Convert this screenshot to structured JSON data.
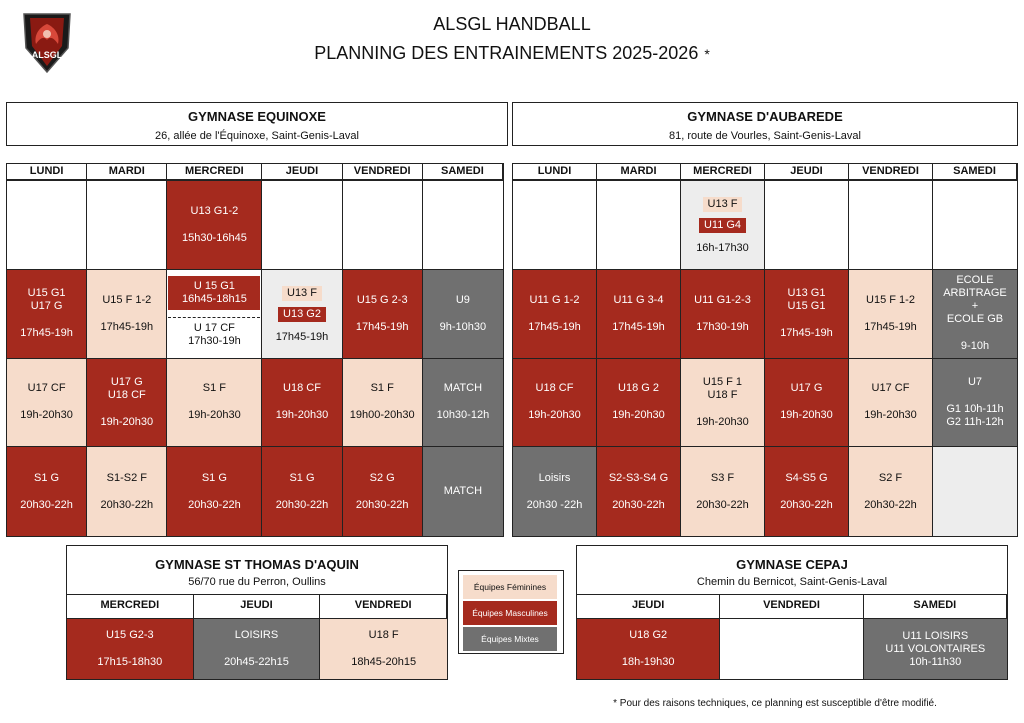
{
  "header": {
    "logo_text": "ALSGL",
    "title": "ALSGL HANDBALL",
    "subtitle": "PLANNING DES ENTRAINEMENTS 2025-2026",
    "asterisk": "*"
  },
  "colors": {
    "feminine": "#f6dccb",
    "masculine": "#a52a1e",
    "mixte": "#707070"
  },
  "equinoxe": {
    "name": "GYMNASE EQUINOXE",
    "address": "26, allée de l'Équinoxe, Saint-Genis-Laval",
    "days": [
      "LUNDI",
      "MARDI",
      "MERCREDI",
      "JEUDI",
      "VENDREDI",
      "SAMEDI"
    ],
    "rows": [
      [
        {
          "type": "w",
          "label": "",
          "time": ""
        },
        {
          "type": "w",
          "label": "",
          "time": ""
        },
        {
          "type": "m",
          "label": "U13 G1-2",
          "time": "15h30-16h45"
        },
        {
          "type": "w",
          "label": "",
          "time": ""
        },
        {
          "type": "w",
          "label": "",
          "time": ""
        },
        {
          "type": "w",
          "label": "",
          "time": ""
        }
      ],
      [
        {
          "type": "m",
          "label": "U15 G1\nU17 G",
          "time": "17h45-19h"
        },
        {
          "type": "f",
          "label": "U15 F 1-2",
          "time": "17h45-19h"
        },
        {
          "type": "split",
          "top_label": "U 15 G1",
          "top_time": "16h45-18h15",
          "bottom_label": "U 17 CF",
          "bottom_time": "17h30-19h"
        },
        {
          "type": "tags",
          "tags": [
            {
              "t": "f",
              "label": "U13 F"
            },
            {
              "t": "m",
              "label": "U13 G2"
            }
          ],
          "time": "17h45-19h"
        },
        {
          "type": "m",
          "label": "U15 G 2-3",
          "time": "17h45-19h"
        },
        {
          "type": "x",
          "label": "U9",
          "time": "9h-10h30"
        }
      ],
      [
        {
          "type": "f",
          "label": "U17 CF",
          "time": "19h-20h30"
        },
        {
          "type": "m",
          "label": "U17 G\nU18 CF",
          "time": "19h-20h30"
        },
        {
          "type": "f",
          "label": "S1 F",
          "time": "19h-20h30"
        },
        {
          "type": "m",
          "label": "U18 CF",
          "time": "19h-20h30"
        },
        {
          "type": "f",
          "label": "S1 F",
          "time": "19h00-20h30"
        },
        {
          "type": "x",
          "label": "MATCH",
          "time": "10h30-12h"
        }
      ],
      [
        {
          "type": "m",
          "label": "S1 G",
          "time": "20h30-22h"
        },
        {
          "type": "f",
          "label": "S1-S2 F",
          "time": "20h30-22h"
        },
        {
          "type": "m",
          "label": "S1 G",
          "time": "20h30-22h"
        },
        {
          "type": "m",
          "label": "S1 G",
          "time": "20h30-22h"
        },
        {
          "type": "m",
          "label": "S2 G",
          "time": "20h30-22h"
        },
        {
          "type": "x",
          "label": "MATCH",
          "time": ""
        }
      ]
    ]
  },
  "aubarede": {
    "name": "GYMNASE D'AUBAREDE",
    "address": "81, route de Vourles, Saint-Genis-Laval",
    "days": [
      "LUNDI",
      "MARDI",
      "MERCREDI",
      "JEUDI",
      "VENDREDI",
      "SAMEDI"
    ],
    "rows": [
      [
        {
          "type": "w",
          "label": "",
          "time": ""
        },
        {
          "type": "w",
          "label": "",
          "time": ""
        },
        {
          "type": "tagslg",
          "tags": [
            {
              "t": "f",
              "label": "U13 F"
            },
            {
              "t": "m",
              "label": "U11 G4"
            }
          ],
          "time": "16h-17h30"
        },
        {
          "type": "w",
          "label": "",
          "time": ""
        },
        {
          "type": "w",
          "label": "",
          "time": ""
        },
        {
          "type": "w",
          "label": "",
          "time": ""
        }
      ],
      [
        {
          "type": "m",
          "label": "U11 G 1-2",
          "time": "17h45-19h"
        },
        {
          "type": "m",
          "label": "U11 G 3-4",
          "time": "17h45-19h"
        },
        {
          "type": "m",
          "label": "U11 G1-2-3",
          "time": "17h30-19h"
        },
        {
          "type": "m",
          "label": "U13 G1\nU15 G1",
          "time": "17h45-19h"
        },
        {
          "type": "f",
          "label": "U15 F 1-2",
          "time": "17h45-19h"
        },
        {
          "type": "x",
          "label": "ECOLE\nARBITRAGE\n+\nECOLE GB",
          "time": "9-10h"
        }
      ],
      [
        {
          "type": "m",
          "label": "U18 CF",
          "time": "19h-20h30"
        },
        {
          "type": "m",
          "label": "U18 G 2",
          "time": "19h-20h30"
        },
        {
          "type": "f",
          "label": "U15 F 1\nU18 F",
          "time": "19h-20h30"
        },
        {
          "type": "m",
          "label": "U17 G",
          "time": "19h-20h30"
        },
        {
          "type": "f",
          "label": "U17 CF",
          "time": "19h-20h30"
        },
        {
          "type": "x",
          "label": "U7",
          "time": "G1 10h-11h\nG2 11h-12h"
        }
      ],
      [
        {
          "type": "x",
          "label": "Loisirs",
          "time": "20h30 -22h"
        },
        {
          "type": "m",
          "label": "S2-S3-S4 G",
          "time": "20h30-22h"
        },
        {
          "type": "f",
          "label": "S3 F",
          "time": "20h30-22h"
        },
        {
          "type": "m",
          "label": "S4-S5 G",
          "time": "20h30-22h"
        },
        {
          "type": "f",
          "label": "S2 F",
          "time": "20h30-22h"
        },
        {
          "type": "lg",
          "label": "",
          "time": ""
        }
      ]
    ]
  },
  "stthomas": {
    "name": "GYMNASE ST THOMAS D'AQUIN",
    "address": "56/70 rue du Perron, Oullins",
    "days": [
      "MERCREDI",
      "JEUDI",
      "VENDREDI"
    ],
    "cells": [
      {
        "type": "m",
        "label": "U15 G2-3",
        "time": "17h15-18h30"
      },
      {
        "type": "x",
        "label": "LOISIRS",
        "time": "20h45-22h15"
      },
      {
        "type": "f",
        "label": "U18 F",
        "time": "18h45-20h15"
      }
    ]
  },
  "cepaj": {
    "name": "GYMNASE CEPAJ",
    "address": "Chemin du Bernicot, Saint-Genis-Laval",
    "days": [
      "JEUDI",
      "VENDREDI",
      "SAMEDI"
    ],
    "cells": [
      {
        "type": "m",
        "label": "U18 G2",
        "time": "18h-19h30"
      },
      {
        "type": "w",
        "label": "",
        "time": ""
      },
      {
        "type": "x",
        "label": "U11 LOISIRS\nU11 VOLONTAIRES",
        "time": "10h-11h30"
      }
    ]
  },
  "legend": {
    "feminine": "Équipes Féminines",
    "masculine": "Équipes Masculines",
    "mixte": "Équipes Mixtes"
  },
  "footnote": "* Pour des raisons techniques, ce planning est susceptible d'être modifié."
}
